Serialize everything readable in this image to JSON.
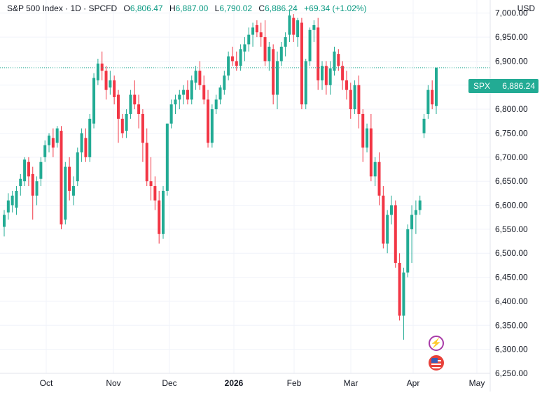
{
  "header": {
    "symbol": "S&P 500 Index · 1D · SPCFD",
    "open_label": "O",
    "open": "6,806.47",
    "high_label": "H",
    "high": "6,887.00",
    "low_label": "L",
    "low": "6,790.02",
    "close_label": "C",
    "close": "6,886.24",
    "change": "+69.34 (+1.02%)"
  },
  "price_scale": {
    "currency": "USD",
    "ticks": [
      "7,000.00",
      "6,950.00",
      "6,900.00",
      "6,850.00",
      "6,800.00",
      "6,750.00",
      "6,700.00",
      "6,650.00",
      "6,600.00",
      "6,550.00",
      "6,500.00",
      "6,450.00",
      "6,400.00",
      "6,350.00",
      "6,300.00",
      "6,250.00"
    ]
  },
  "last_price_tag": {
    "symbol": "SPX",
    "price": "6,886.24"
  },
  "colors": {
    "up": "#22ab94",
    "down": "#f23645",
    "grid": "#f0f3fa",
    "last_line": "#22ab94"
  },
  "events": [
    "flash-icon",
    "us-flag-icon"
  ],
  "chart_data": {
    "type": "candlestick",
    "x_axis_labels": [
      "Oct",
      "Nov",
      "Dec",
      "2026",
      "Feb",
      "Mar",
      "Apr",
      "May"
    ],
    "y_axis": {
      "range": [
        6250,
        7020
      ],
      "step": 50
    },
    "grid": true,
    "candles": [
      [
        6555,
        6590,
        6535,
        6580
      ],
      [
        6585,
        6625,
        6570,
        6610
      ],
      [
        6600,
        6630,
        6585,
        6620
      ],
      [
        6595,
        6640,
        6580,
        6630
      ],
      [
        6640,
        6665,
        6620,
        6655
      ],
      [
        6650,
        6700,
        6640,
        6695
      ],
      [
        6690,
        6700,
        6640,
        6660
      ],
      [
        6665,
        6680,
        6570,
        6620
      ],
      [
        6620,
        6660,
        6600,
        6650
      ],
      [
        6655,
        6700,
        6640,
        6690
      ],
      [
        6700,
        6735,
        6690,
        6725
      ],
      [
        6725,
        6750,
        6710,
        6745
      ],
      [
        6740,
        6760,
        6700,
        6720
      ],
      [
        6730,
        6765,
        6720,
        6760
      ],
      [
        6755,
        6765,
        6550,
        6560
      ],
      [
        6570,
        6690,
        6560,
        6680
      ],
      [
        6680,
        6700,
        6610,
        6630
      ],
      [
        6620,
        6660,
        6600,
        6640
      ],
      [
        6650,
        6720,
        6640,
        6710
      ],
      [
        6710,
        6760,
        6690,
        6750
      ],
      [
        6740,
        6760,
        6690,
        6700
      ],
      [
        6700,
        6790,
        6690,
        6780
      ],
      [
        6770,
        6875,
        6760,
        6865
      ],
      [
        6860,
        6905,
        6850,
        6895
      ],
      [
        6895,
        6920,
        6860,
        6880
      ],
      [
        6880,
        6890,
        6820,
        6840
      ],
      [
        6845,
        6880,
        6830,
        6860
      ],
      [
        6860,
        6870,
        6810,
        6825
      ],
      [
        6830,
        6840,
        6730,
        6780
      ],
      [
        6780,
        6790,
        6740,
        6750
      ],
      [
        6755,
        6800,
        6740,
        6790
      ],
      [
        6790,
        6840,
        6780,
        6830
      ],
      [
        6830,
        6860,
        6800,
        6810
      ],
      [
        6810,
        6830,
        6760,
        6790
      ],
      [
        6790,
        6800,
        6690,
        6730
      ],
      [
        6730,
        6760,
        6640,
        6650
      ],
      [
        6650,
        6700,
        6610,
        6640
      ],
      [
        6640,
        6660,
        6590,
        6610
      ],
      [
        6610,
        6630,
        6520,
        6540
      ],
      [
        6540,
        6640,
        6530,
        6630
      ],
      [
        6630,
        6770,
        6620,
        6770
      ],
      [
        6770,
        6820,
        6760,
        6810
      ],
      [
        6810,
        6830,
        6790,
        6820
      ],
      [
        6820,
        6840,
        6800,
        6830
      ],
      [
        6830,
        6850,
        6810,
        6840
      ],
      [
        6840,
        6860,
        6810,
        6820
      ],
      [
        6820,
        6870,
        6810,
        6860
      ],
      [
        6855,
        6890,
        6840,
        6880
      ],
      [
        6880,
        6900,
        6840,
        6850
      ],
      [
        6850,
        6870,
        6810,
        6820
      ],
      [
        6820,
        6840,
        6720,
        6730
      ],
      [
        6730,
        6810,
        6720,
        6800
      ],
      [
        6800,
        6830,
        6790,
        6820
      ],
      [
        6820,
        6850,
        6810,
        6845
      ],
      [
        6840,
        6880,
        6830,
        6870
      ],
      [
        6870,
        6920,
        6860,
        6910
      ],
      [
        6910,
        6930,
        6890,
        6900
      ],
      [
        6900,
        6920,
        6880,
        6890
      ],
      [
        6890,
        6935,
        6880,
        6925
      ],
      [
        6920,
        6950,
        6900,
        6935
      ],
      [
        6935,
        6970,
        6920,
        6955
      ],
      [
        6955,
        6980,
        6930,
        6970
      ],
      [
        6975,
        6985,
        6950,
        6960
      ],
      [
        6960,
        6980,
        6930,
        6950
      ],
      [
        6950,
        6985,
        6890,
        6900
      ],
      [
        6900,
        6940,
        6880,
        6930
      ],
      [
        6925,
        6935,
        6810,
        6830
      ],
      [
        6830,
        6920,
        6800,
        6900
      ],
      [
        6900,
        6940,
        6890,
        6930
      ],
      [
        6930,
        6960,
        6910,
        6950
      ],
      [
        6955,
        7005,
        6940,
        6995
      ],
      [
        6990,
        6998,
        6940,
        6955
      ],
      [
        6950,
        6990,
        6930,
        6985
      ],
      [
        6980,
        6990,
        6800,
        6810
      ],
      [
        6810,
        6905,
        6800,
        6900
      ],
      [
        6900,
        6970,
        6890,
        6965
      ],
      [
        6965,
        6985,
        6940,
        6975
      ],
      [
        6970,
        6990,
        6840,
        6860
      ],
      [
        6860,
        6900,
        6840,
        6890
      ],
      [
        6890,
        6900,
        6830,
        6850
      ],
      [
        6850,
        6900,
        6830,
        6885
      ],
      [
        6880,
        6930,
        6870,
        6920
      ],
      [
        6915,
        6925,
        6880,
        6890
      ],
      [
        6890,
        6900,
        6840,
        6860
      ],
      [
        6860,
        6880,
        6820,
        6840
      ],
      [
        6840,
        6855,
        6780,
        6800
      ],
      [
        6800,
        6860,
        6790,
        6850
      ],
      [
        6850,
        6870,
        6760,
        6790
      ],
      [
        6790,
        6800,
        6690,
        6720
      ],
      [
        6720,
        6770,
        6710,
        6760
      ],
      [
        6760,
        6790,
        6650,
        6660
      ],
      [
        6660,
        6700,
        6640,
        6690
      ],
      [
        6690,
        6710,
        6600,
        6620
      ],
      [
        6620,
        6640,
        6510,
        6520
      ],
      [
        6520,
        6590,
        6500,
        6580
      ],
      [
        6580,
        6620,
        6560,
        6600
      ],
      [
        6600,
        6610,
        6470,
        6480
      ],
      [
        6480,
        6500,
        6360,
        6370
      ],
      [
        6370,
        6470,
        6320,
        6460
      ],
      [
        6460,
        6560,
        6450,
        6550
      ],
      [
        6550,
        6600,
        6480,
        6580
      ],
      [
        6580,
        6610,
        6540,
        6590
      ],
      [
        6590,
        6620,
        6580,
        6610
      ],
      [
        6750,
        6790,
        6740,
        6780
      ],
      [
        6790,
        6850,
        6780,
        6840
      ],
      [
        6840,
        6860,
        6800,
        6810
      ],
      [
        6806.47,
        6887,
        6790.02,
        6886.24
      ]
    ]
  }
}
